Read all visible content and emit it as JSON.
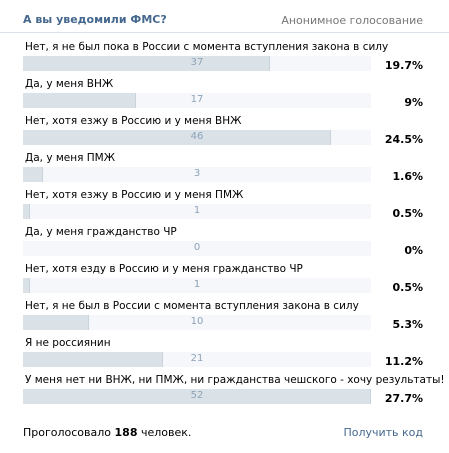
{
  "header": {
    "title": "А вы уведомили ФМС?",
    "anon_label": "Анонимное голосование"
  },
  "answers": [
    {
      "label": "Нет, я не был пока в России с момента вступления закона в силу",
      "count": "37",
      "percent": "19.7%",
      "fraction": 0.711
    },
    {
      "label": "Да, у меня ВНЖ",
      "count": "17",
      "percent": "9%",
      "fraction": 0.325
    },
    {
      "label": "Нет, хотя езжу в Россию и у меня ВНЖ",
      "count": "46",
      "percent": "24.5%",
      "fraction": 0.885
    },
    {
      "label": "Да, у меня ПМЖ",
      "count": "3",
      "percent": "1.6%",
      "fraction": 0.058
    },
    {
      "label": "Нет, хотя езжу в Россию и у меня ПМЖ",
      "count": "1",
      "percent": "0.5%",
      "fraction": 0.019
    },
    {
      "label": "Да, у меня гражданство ЧР",
      "count": "0",
      "percent": "0%",
      "fraction": 0.0
    },
    {
      "label": "Нет, хотя езду в Россию и у меня гражданство ЧР",
      "count": "1",
      "percent": "0.5%",
      "fraction": 0.019
    },
    {
      "label": "Нет, я не был в России с момента вступления закона в силу",
      "count": "10",
      "percent": "5.3%",
      "fraction": 0.191
    },
    {
      "label": "Я не россиянин",
      "count": "21",
      "percent": "11.2%",
      "fraction": 0.403
    },
    {
      "label": "У меня нет ни ВНЖ, ни ПМЖ, ни гражданства чешского - хочу результаты!",
      "count": "52",
      "percent": "27.7%",
      "fraction": 1.0
    }
  ],
  "footer": {
    "voted_prefix": "Проголосовало",
    "voted_count": "188",
    "voted_suffix": "человек.",
    "get_code": "Получить код"
  },
  "colors": {
    "title": "#45688e",
    "bar_fill": "#dae2e8",
    "bar_track": "#f5f7fa",
    "count_text": "#8da3b8",
    "link": "#45688e"
  }
}
